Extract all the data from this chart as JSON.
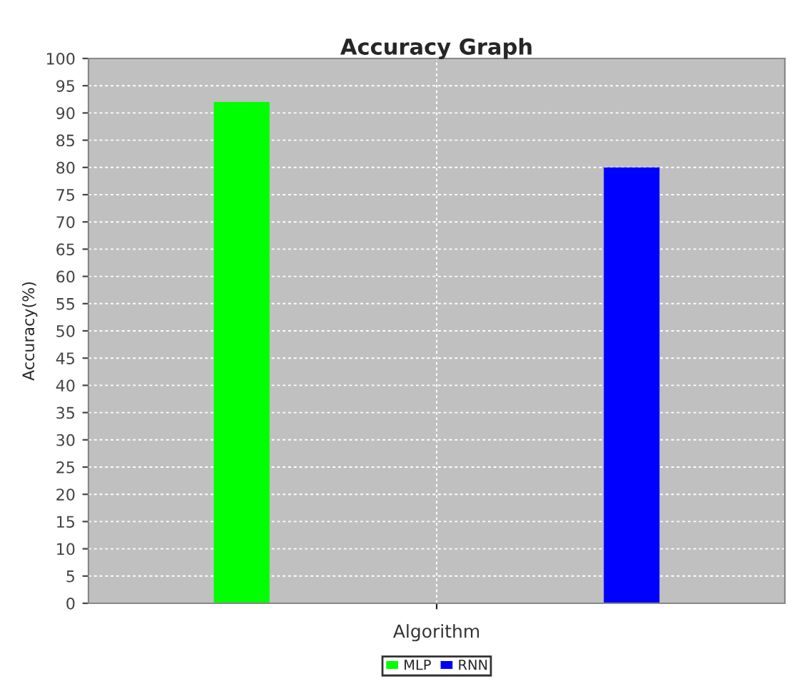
{
  "chart_data": {
    "type": "bar",
    "title": "Accuracy Graph",
    "xlabel": "Algorithm",
    "ylabel": "Accuracy(%)",
    "categories": [
      null
    ],
    "series": [
      {
        "name": "MLP",
        "color": "#00ff00",
        "values": [
          92
        ]
      },
      {
        "name": "RNN",
        "color": "#0000ff",
        "values": [
          80
        ]
      }
    ],
    "ylim": [
      0,
      100
    ],
    "yticks": [
      0,
      5,
      10,
      15,
      20,
      25,
      30,
      35,
      40,
      45,
      50,
      55,
      60,
      65,
      70,
      75,
      80,
      85,
      90,
      95,
      100
    ],
    "grid": true,
    "legend": "bottom"
  }
}
